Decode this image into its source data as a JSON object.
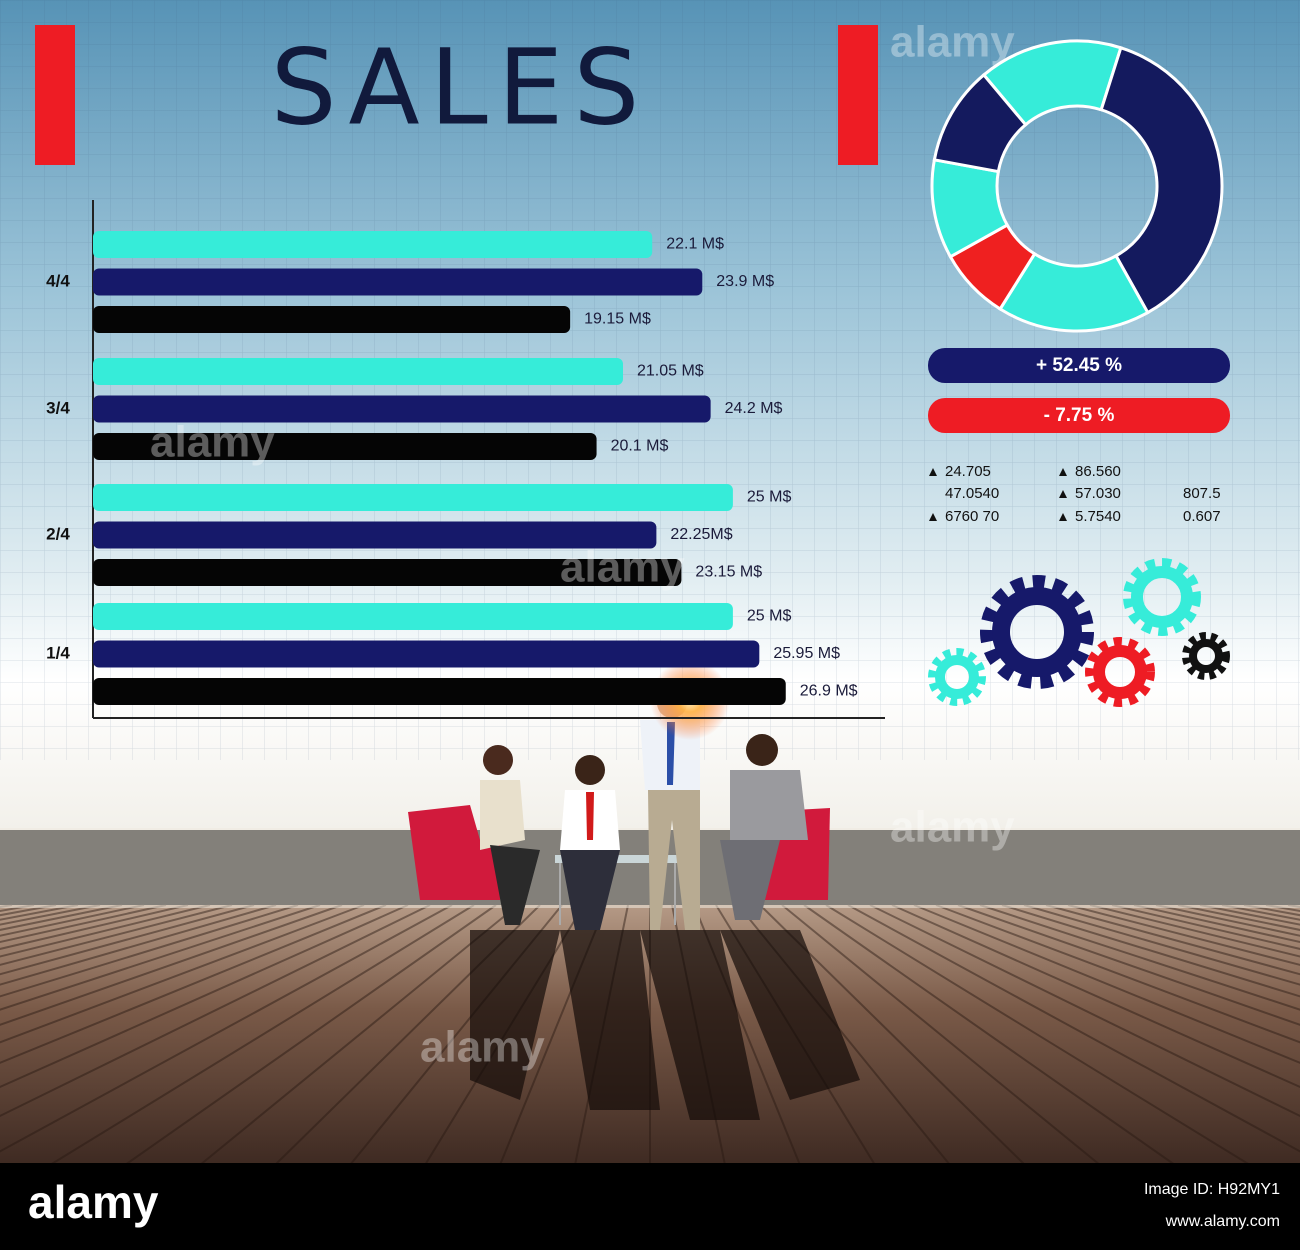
{
  "chart_data": [
    {
      "type": "bar",
      "title": "SALES",
      "orientation": "horizontal",
      "categories": [
        "4/4",
        "3/4",
        "2/4",
        "1/4"
      ],
      "xlim": [
        2,
        30
      ],
      "series": [
        {
          "color": "#36ecd9",
          "values": [
            22.1,
            21.05,
            25,
            25
          ],
          "value_labels": [
            "22.1 M$",
            "21.05 M$",
            "25 M$",
            "25 M$"
          ]
        },
        {
          "color": "#16196a",
          "values": [
            23.9,
            24.2,
            22.25,
            25.95
          ],
          "value_labels": [
            "23.9 M$",
            "24.2 M$",
            "22.25M$",
            "25.95 M$"
          ]
        },
        {
          "color": "#050505",
          "values": [
            19.15,
            20.1,
            23.15,
            26.9
          ],
          "value_labels": [
            "19.15 M$",
            "20.1 M$",
            "23.15 M$",
            "26.9 M$"
          ]
        }
      ]
    },
    {
      "type": "donut",
      "values": [
        16,
        37,
        17,
        8,
        11,
        11
      ],
      "colors": [
        "#36ecd9",
        "#141a5e",
        "#36ecd9",
        "#ef2020",
        "#36ecd9",
        "#141a5e"
      ]
    }
  ],
  "panel": {
    "change_up": "+ 52.45 %",
    "change_down": "- 7.75 %",
    "stats": [
      [
        "24.705",
        "47.0540",
        "6760 70"
      ],
      [
        "86.560",
        "57.030",
        "5.7540"
      ],
      [
        "807.5",
        "0.607"
      ]
    ]
  },
  "watermark": "alamy",
  "footer": {
    "logo": "alamy",
    "image_id": "Image ID: H92MY1",
    "url": "www.alamy.com"
  }
}
